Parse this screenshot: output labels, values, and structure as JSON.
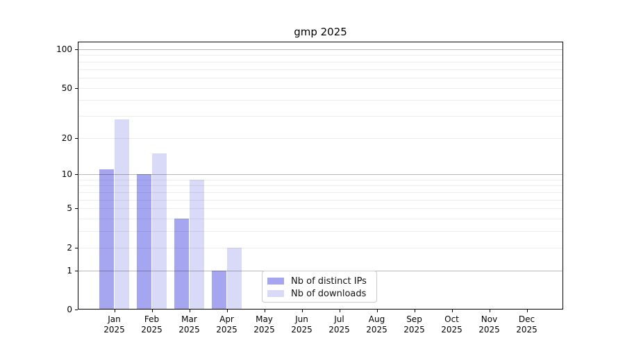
{
  "title": "gmp 2025",
  "colors": {
    "background": "#ffffff",
    "axis": "#000000",
    "text": "#000000",
    "legend_border": "#cccccc",
    "distinct_ips_bar": "#a5a5f0",
    "downloads_bar": "#d9d9f8"
  },
  "legend": {
    "position": "bottom-center"
  },
  "chart_data": {
    "type": "bar",
    "title": "gmp 2025",
    "xlabel": "",
    "ylabel": "",
    "yscale": "log1p",
    "ylim": [
      0,
      100
    ],
    "grid": true,
    "legend_position": "lower center",
    "y_tick_values": [
      100,
      50,
      20,
      10,
      5,
      2,
      1,
      0
    ],
    "y_tick_labels": [
      "100",
      "50",
      "20",
      "10",
      "5",
      "2",
      "1",
      "0"
    ],
    "y_major_gridlines": [
      1,
      10,
      100
    ],
    "y_minor_gridlines": [
      2,
      3,
      4,
      5,
      6,
      7,
      8,
      9,
      20,
      30,
      40,
      50,
      60,
      70,
      80,
      90
    ],
    "months": [
      {
        "month": "Jan",
        "year": "2025"
      },
      {
        "month": "Feb",
        "year": "2025"
      },
      {
        "month": "Mar",
        "year": "2025"
      },
      {
        "month": "Apr",
        "year": "2025"
      },
      {
        "month": "May",
        "year": "2025"
      },
      {
        "month": "Jun",
        "year": "2025"
      },
      {
        "month": "Jul",
        "year": "2025"
      },
      {
        "month": "Aug",
        "year": "2025"
      },
      {
        "month": "Sep",
        "year": "2025"
      },
      {
        "month": "Oct",
        "year": "2025"
      },
      {
        "month": "Nov",
        "year": "2025"
      },
      {
        "month": "Dec",
        "year": "2025"
      }
    ],
    "series": [
      {
        "name": "Nb of distinct IPs",
        "color": "#a5a5f0",
        "values": [
          11,
          10,
          4,
          1,
          null,
          null,
          null,
          null,
          null,
          null,
          null,
          null
        ]
      },
      {
        "name": "Nb of downloads",
        "color": "#d9d9f8",
        "values": [
          28,
          15,
          9,
          2,
          null,
          null,
          null,
          null,
          null,
          null,
          null,
          null
        ]
      }
    ]
  }
}
